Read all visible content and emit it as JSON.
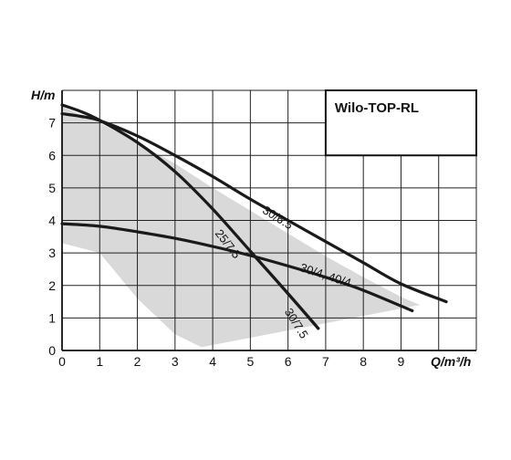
{
  "chart_data": {
    "type": "line",
    "title": "Wilo-TOP-RL",
    "xlabel": "Q/m³/h",
    "ylabel": "H/m",
    "xlim": [
      0,
      11
    ],
    "ylim": [
      0,
      8
    ],
    "xticks": [
      "0",
      "1",
      "2",
      "3",
      "4",
      "5",
      "6",
      "7",
      "8",
      "9"
    ],
    "yticks": [
      "0",
      "1",
      "2",
      "3",
      "4",
      "5",
      "6",
      "7"
    ],
    "grid": true,
    "colors": {
      "curve": "#1a1a1a",
      "area": "#d9d9d9",
      "grid": "#222222"
    },
    "shaded_region": [
      [
        0,
        7.5
      ],
      [
        0.5,
        7.25
      ],
      [
        1,
        7.0
      ],
      [
        2,
        6.4
      ],
      [
        3,
        5.75
      ],
      [
        4,
        5.0
      ],
      [
        5,
        4.3
      ],
      [
        6,
        3.6
      ],
      [
        7,
        2.9
      ],
      [
        8,
        2.25
      ],
      [
        9,
        1.65
      ],
      [
        9.5,
        1.4
      ],
      [
        3.7,
        0.1
      ],
      [
        3.0,
        0.5
      ],
      [
        2.0,
        1.6
      ],
      [
        1.5,
        2.3
      ],
      [
        1.0,
        3.0
      ],
      [
        0,
        3.3
      ]
    ],
    "series": [
      {
        "name": "30/6.5",
        "points": [
          [
            0,
            7.28
          ],
          [
            0.5,
            7.2
          ],
          [
            1,
            7.07
          ],
          [
            2,
            6.6
          ],
          [
            3,
            6.0
          ],
          [
            4,
            5.35
          ],
          [
            5,
            4.65
          ],
          [
            6,
            4.0
          ],
          [
            7,
            3.35
          ],
          [
            8,
            2.7
          ],
          [
            9,
            2.05
          ],
          [
            10.2,
            1.5
          ]
        ]
      },
      {
        "name": "25/7.5",
        "points": [
          [
            0,
            7.55
          ],
          [
            0.5,
            7.35
          ],
          [
            1,
            7.08
          ],
          [
            2,
            6.4
          ],
          [
            3,
            5.5
          ],
          [
            4,
            4.35
          ],
          [
            5,
            3.05
          ],
          [
            6,
            1.75
          ],
          [
            6.8,
            0.68
          ]
        ]
      },
      {
        "name": "30/4, 40/4",
        "points": [
          [
            0,
            3.9
          ],
          [
            1,
            3.82
          ],
          [
            2,
            3.65
          ],
          [
            3,
            3.45
          ],
          [
            4,
            3.2
          ],
          [
            5,
            2.92
          ],
          [
            6,
            2.6
          ],
          [
            7,
            2.25
          ],
          [
            8,
            1.85
          ],
          [
            9.3,
            1.22
          ]
        ]
      },
      {
        "name": "30/7.5",
        "points": [
          [
            5,
            3.05
          ],
          [
            6,
            1.75
          ],
          [
            6.8,
            0.68
          ]
        ]
      }
    ],
    "annotations": [
      {
        "text": "30/6.5",
        "x": 5.3,
        "y": 4.25,
        "angle": 32
      },
      {
        "text": "25/7.5",
        "x": 4.05,
        "y": 3.6,
        "angle": 52
      },
      {
        "text": "30/4, 40/4",
        "x": 6.3,
        "y": 2.45,
        "angle": 18
      },
      {
        "text": "30/7.5",
        "x": 5.9,
        "y": 1.2,
        "angle": 58
      }
    ]
  }
}
